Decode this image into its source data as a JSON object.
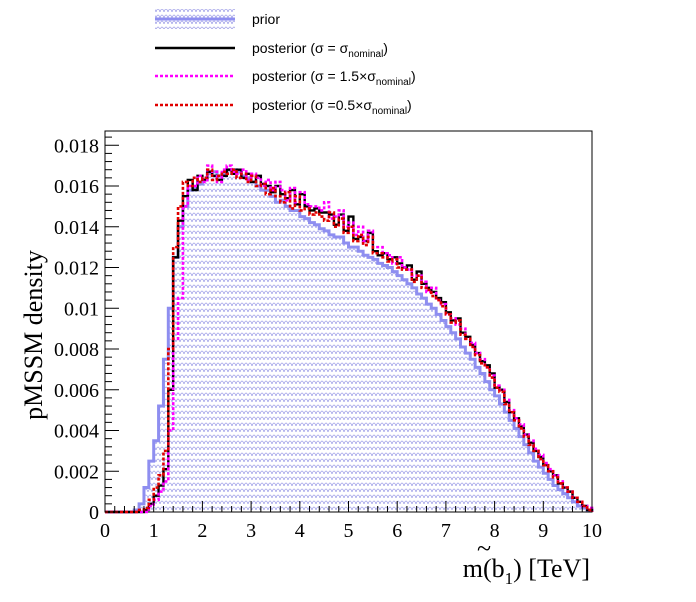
{
  "chart_data": {
    "type": "histogram",
    "xlabel": "m(b̃₁) [TeV]",
    "xlabel_parts": {
      "prefix": "m(",
      "letter": "b",
      "tilde": "~",
      "sub": "1",
      "suffix": ") [TeV]"
    },
    "ylabel": "pMSSM density",
    "xlim": [
      0,
      10
    ],
    "ylim": [
      0,
      0.0187
    ],
    "x_ticks": [
      "0",
      "1",
      "2",
      "3",
      "4",
      "5",
      "6",
      "7",
      "8",
      "9",
      "10"
    ],
    "y_ticks": [
      "0",
      "0.002",
      "0.004",
      "0.006",
      "0.008",
      "0.01",
      "0.012",
      "0.014",
      "0.016",
      "0.018"
    ],
    "bin_width": 0.1,
    "bin_edges_start": 0,
    "legend_position": "top",
    "series": [
      {
        "label": "prior",
        "color": "#8e8ef0",
        "style": "filled-hatched",
        "values": [
          0,
          0,
          0,
          0,
          0,
          0,
          0.0001,
          0.0004,
          0.0012,
          0.0025,
          0.0035,
          0.0052,
          0.0075,
          0.01,
          0.0125,
          0.014,
          0.015,
          0.0158,
          0.0159,
          0.0161,
          0.0163,
          0.0166,
          0.0167,
          0.0165,
          0.0166,
          0.0168,
          0.0168,
          0.0167,
          0.0165,
          0.0164,
          0.0162,
          0.016,
          0.0158,
          0.0158,
          0.0155,
          0.0152,
          0.0153,
          0.015,
          0.0148,
          0.0148,
          0.0145,
          0.0144,
          0.0142,
          0.0141,
          0.0139,
          0.0138,
          0.0136,
          0.0135,
          0.0135,
          0.0132,
          0.013,
          0.013,
          0.0128,
          0.0126,
          0.0125,
          0.0124,
          0.0122,
          0.0121,
          0.012,
          0.0118,
          0.0116,
          0.0114,
          0.0112,
          0.011,
          0.0107,
          0.0105,
          0.0102,
          0.01,
          0.0097,
          0.0094,
          0.0091,
          0.0088,
          0.0085,
          0.0081,
          0.0078,
          0.0075,
          0.0071,
          0.0068,
          0.0064,
          0.006,
          0.0057,
          0.0053,
          0.0049,
          0.0045,
          0.0041,
          0.0037,
          0.0033,
          0.0029,
          0.0025,
          0.0022,
          0.0019,
          0.0016,
          0.0013,
          0.0011,
          0.0009,
          0.0007,
          0.0005,
          0.0003,
          0.0002,
          0.0001
        ]
      },
      {
        "label": "posterior (σ = σnominal)",
        "label_parts": [
          "posterior (σ = σ",
          "nominal",
          ")"
        ],
        "color": "#000000",
        "style": "solid",
        "values": [
          0,
          0,
          0,
          0,
          0,
          0,
          0,
          0,
          0.0001,
          0.0004,
          0.0008,
          0.0013,
          0.0021,
          0.006,
          0.0125,
          0.0143,
          0.0155,
          0.0163,
          0.0158,
          0.0165,
          0.0163,
          0.0167,
          0.0165,
          0.0163,
          0.0165,
          0.0168,
          0.0166,
          0.0168,
          0.0164,
          0.0166,
          0.0162,
          0.0165,
          0.0161,
          0.016,
          0.0157,
          0.016,
          0.0156,
          0.0154,
          0.0158,
          0.0151,
          0.0156,
          0.015,
          0.0148,
          0.0149,
          0.0147,
          0.0147,
          0.0146,
          0.0141,
          0.0146,
          0.0138,
          0.0145,
          0.0134,
          0.0135,
          0.0133,
          0.0137,
          0.0128,
          0.0126,
          0.0127,
          0.0124,
          0.0125,
          0.0122,
          0.012,
          0.0121,
          0.0114,
          0.0118,
          0.0112,
          0.011,
          0.0108,
          0.0105,
          0.0103,
          0.0098,
          0.0094,
          0.0095,
          0.0088,
          0.0086,
          0.0082,
          0.0078,
          0.0074,
          0.0072,
          0.0068,
          0.0061,
          0.006,
          0.0054,
          0.0049,
          0.0046,
          0.0042,
          0.0038,
          0.0034,
          0.003,
          0.0027,
          0.0023,
          0.002,
          0.0018,
          0.0014,
          0.0012,
          0.001,
          0.0007,
          0.0005,
          0.0003,
          0.0001
        ]
      },
      {
        "label": "posterior (σ = 1.5×σnominal)",
        "label_parts": [
          "posterior (σ = 1.5×σ",
          "nominal",
          ")"
        ],
        "color": "#ff00ff",
        "style": "dotted",
        "values": [
          0,
          0,
          0,
          0,
          0,
          0,
          0,
          0,
          0,
          0.0003,
          0.0006,
          0.001,
          0.0015,
          0.004,
          0.0085,
          0.0105,
          0.015,
          0.016,
          0.016,
          0.0165,
          0.0162,
          0.017,
          0.0167,
          0.0162,
          0.0168,
          0.017,
          0.0167,
          0.0166,
          0.0168,
          0.0163,
          0.0166,
          0.0164,
          0.016,
          0.0163,
          0.0158,
          0.0162,
          0.0158,
          0.0153,
          0.0159,
          0.0152,
          0.0157,
          0.0151,
          0.015,
          0.015,
          0.0148,
          0.0152,
          0.0144,
          0.0145,
          0.0148,
          0.014,
          0.0142,
          0.0136,
          0.014,
          0.0133,
          0.0138,
          0.013,
          0.013,
          0.0127,
          0.0126,
          0.0122,
          0.0125,
          0.012,
          0.0119,
          0.0116,
          0.0116,
          0.0113,
          0.0108,
          0.011,
          0.0104,
          0.0102,
          0.0097,
          0.0095,
          0.0092,
          0.009,
          0.0085,
          0.0083,
          0.0078,
          0.0075,
          0.0071,
          0.0067,
          0.0062,
          0.006,
          0.0055,
          0.005,
          0.0046,
          0.0043,
          0.0038,
          0.0035,
          0.0031,
          0.0028,
          0.0024,
          0.0021,
          0.0018,
          0.0015,
          0.0012,
          0.001,
          0.0007,
          0.0005,
          0.0003,
          0.0002
        ]
      },
      {
        "label": "posterior (σ =0.5×σnominal)",
        "label_parts": [
          "posterior (σ =0.5×σ",
          "nominal",
          ")"
        ],
        "color": "#e00000",
        "style": "dotted",
        "values": [
          0,
          0,
          0,
          0,
          0,
          0,
          0,
          0.0001,
          0.0002,
          0.0006,
          0.0012,
          0.0018,
          0.003,
          0.008,
          0.013,
          0.015,
          0.0162,
          0.016,
          0.0164,
          0.0162,
          0.0164,
          0.0168,
          0.0163,
          0.0165,
          0.0167,
          0.0166,
          0.0168,
          0.0164,
          0.0166,
          0.0162,
          0.0165,
          0.016,
          0.0161,
          0.0156,
          0.0159,
          0.0155,
          0.0152,
          0.0157,
          0.0149,
          0.0155,
          0.0148,
          0.0149,
          0.0146,
          0.0147,
          0.0145,
          0.0143,
          0.0147,
          0.014,
          0.0144,
          0.0137,
          0.014,
          0.0133,
          0.0136,
          0.0131,
          0.0135,
          0.0127,
          0.0127,
          0.0125,
          0.0123,
          0.0124,
          0.012,
          0.0119,
          0.0119,
          0.0113,
          0.0116,
          0.011,
          0.0109,
          0.0106,
          0.0104,
          0.0101,
          0.0097,
          0.0093,
          0.0094,
          0.0087,
          0.0085,
          0.0081,
          0.0077,
          0.0073,
          0.0071,
          0.0066,
          0.0061,
          0.0059,
          0.0053,
          0.0049,
          0.0045,
          0.0041,
          0.0037,
          0.0033,
          0.003,
          0.0026,
          0.0023,
          0.002,
          0.0017,
          0.0014,
          0.0012,
          0.001,
          0.0007,
          0.0005,
          0.0003,
          0.0001
        ]
      }
    ]
  }
}
